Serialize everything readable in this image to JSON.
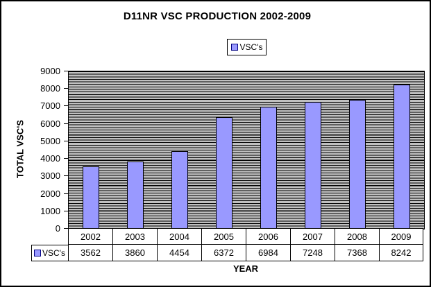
{
  "chart_data": {
    "type": "bar",
    "title": "D11NR VSC PRODUCTION 2002-2009",
    "categories": [
      "2002",
      "2003",
      "2004",
      "2005",
      "2006",
      "2007",
      "2008",
      "2009"
    ],
    "series": [
      {
        "name": "VSC's",
        "values": [
          3562,
          3860,
          4454,
          6372,
          6984,
          7248,
          7368,
          8242
        ]
      }
    ],
    "xlabel": "YEAR",
    "ylabel": "TOTAL VSC'S",
    "ylim": [
      0,
      9000
    ],
    "yticks": [
      0,
      1000,
      2000,
      3000,
      4000,
      5000,
      6000,
      7000,
      8000,
      9000
    ],
    "legend_position": "top-center",
    "grid": "dense-horizontal-minor-gridlines",
    "data_table_shown": true
  },
  "colors": {
    "bar_fill": "#9999FF",
    "bar_border": "#000000",
    "plot_bg": "#C0C0C0",
    "gridline": "#000000",
    "swatch_fill": "#9999FF",
    "swatch_border": "#000080",
    "table_cell_bg": "#FFFFFF",
    "background": "#FFFFFF",
    "outer_border": "#000000"
  }
}
